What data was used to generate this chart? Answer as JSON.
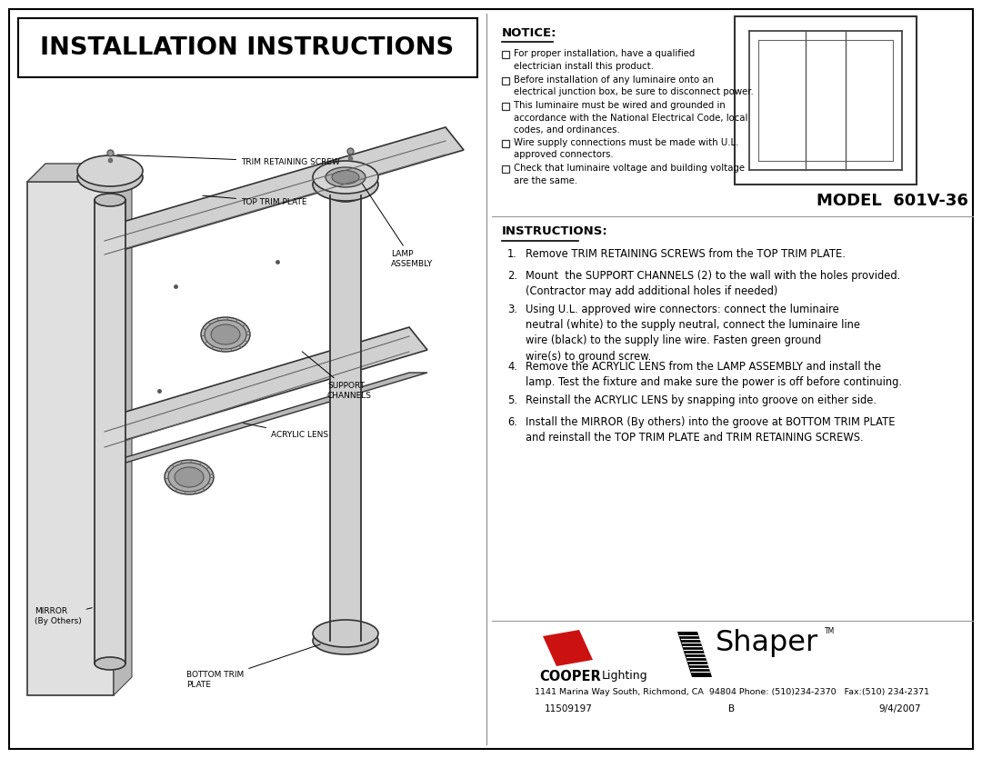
{
  "title": "INSTALLATION INSTRUCTIONS",
  "model": "MODEL  601V-36",
  "notice_title": "NOTICE:",
  "notice_items": [
    "For proper installation, have a qualified\nelectrician install this product.",
    "Before installation of any luminaire onto an\nelectrical junction box, be sure to disconnect power.",
    "This luminaire must be wired and grounded in\naccordance with the National Electrical Code, local\ncodes, and ordinances.",
    "Wire supply connections must be made with U.L.\napproved connectors.",
    "Check that luminaire voltage and building voltage\nare the same."
  ],
  "instructions_title": "INSTRUCTIONS:",
  "instructions": [
    "Remove TRIM RETAINING SCREWS from the TOP TRIM PLATE.",
    "Mount  the SUPPORT CHANNELS (2) to the wall with the holes provided.\n(Contractor may add additional holes if needed)",
    "Using U.L. approved wire connectors: connect the luminaire\nneutral (white) to the supply neutral, connect the luminaire line\nwire (black) to the supply line wire. Fasten green ground\nwire(s) to ground screw.",
    "Remove the ACRYLIC LENS from the LAMP ASSEMBLY and install the\nlamp. Test the fixture and make sure the power is off before continuing.",
    "Reinstall the ACRYLIC LENS by snapping into groove on either side.",
    "Install the MIRROR (By others) into the groove at BOTTOM TRIM PLATE\nand reinstall the TOP TRIM PLATE and TRIM RETAINING SCREWS."
  ],
  "footer_address": "1141 Marina Way South, Richmond, CA  94804 Phone: (510)234-2370   Fax:(510) 234-2371",
  "footer_cols": [
    "11509197",
    "B",
    "9/4/2007"
  ],
  "bg_color": "#ffffff",
  "border_color": "#000000"
}
